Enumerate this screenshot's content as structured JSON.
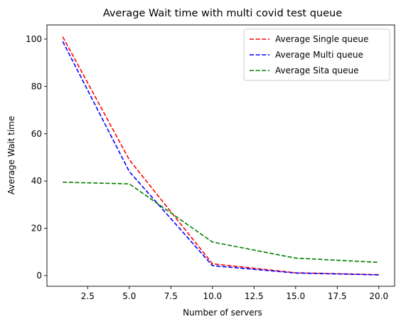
{
  "chart_data": {
    "type": "line",
    "title": "Average Wait time with multi covid test queue",
    "xlabel": "Number of servers",
    "ylabel": "Average Wait time",
    "xlim": [
      0.05,
      20.95
    ],
    "ylim": [
      -4.5,
      106
    ],
    "xticks": [
      2.5,
      5.0,
      7.5,
      10.0,
      12.5,
      15.0,
      17.5,
      20.0
    ],
    "xtick_labels": [
      "2.5",
      "5.0",
      "7.5",
      "10.0",
      "12.5",
      "15.0",
      "17.5",
      "20.0"
    ],
    "yticks": [
      0,
      20,
      40,
      60,
      80,
      100
    ],
    "ytick_labels": [
      "0",
      "20",
      "40",
      "60",
      "80",
      "100"
    ],
    "grid": false,
    "legend_position": "top-right",
    "x": [
      1,
      5,
      10,
      15,
      20
    ],
    "series": [
      {
        "name": "Average Single queue",
        "color": "#ff0000",
        "dash": "dashed",
        "values": [
          101,
          49,
          5,
          1.2,
          0.4
        ]
      },
      {
        "name": "Average Multi queue",
        "color": "#0000ff",
        "dash": "dashed",
        "values": [
          99,
          44,
          4.2,
          1.1,
          0.3
        ]
      },
      {
        "name": "Average Sita queue",
        "color": "#008000",
        "dash": "dashed",
        "values": [
          39.5,
          38.8,
          14.2,
          7.4,
          5.6
        ]
      }
    ]
  }
}
